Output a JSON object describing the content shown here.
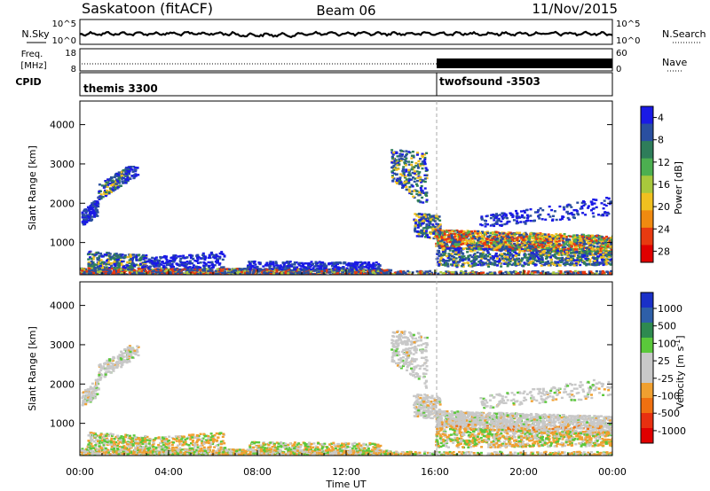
{
  "header": {
    "station": "Saskatoon (fitACF)",
    "beam": "Beam 06",
    "date": "11/Nov/2015"
  },
  "top_panel": {
    "left_label": "N.Sky",
    "right_label": "N.Search",
    "left_ticks": [
      "10^5",
      "10^0"
    ],
    "right_ticks": [
      "10^5",
      "10^0"
    ]
  },
  "freq_panel": {
    "left_label_top": "Freq.",
    "left_label_bottom": "[MHz]",
    "right_label": "Nave",
    "left_ticks": [
      "18",
      "8"
    ],
    "right_ticks": [
      "60",
      "0"
    ],
    "cpid_label": "CPID"
  },
  "cpid": [
    {
      "name": "themis 3300",
      "start_hour": 0
    },
    {
      "name": "twofsound -3503",
      "start_hour": 16
    }
  ],
  "chart_data": [
    {
      "type": "heatmap",
      "title": "",
      "xlabel": "Time UT",
      "ylabel": "Slant Range [km]",
      "x_ticks": [
        "00:00",
        "04:00",
        "08:00",
        "12:00",
        "16:00",
        "20:00",
        "00:00"
      ],
      "xlim_hours": [
        0,
        24
      ],
      "y_ticks": [
        1000,
        2000,
        3000,
        4000
      ],
      "ylim": [
        180,
        4600
      ],
      "colorbar": {
        "label": "Power [dB]",
        "ticks": [
          "4",
          "8",
          "12",
          "16",
          "20",
          "24",
          "28"
        ],
        "colors": [
          "#1a1ae6",
          "#2a4fa0",
          "#2e7d5a",
          "#4caf50",
          "#a8c83c",
          "#f0c020",
          "#f08a10",
          "#e83a10",
          "#e00000"
        ]
      }
    },
    {
      "type": "heatmap",
      "title": "",
      "xlabel": "Time UT",
      "ylabel": "Slant Range [km]",
      "x_ticks": [
        "00:00",
        "04:00",
        "08:00",
        "12:00",
        "16:00",
        "20:00",
        "00:00"
      ],
      "xlim_hours": [
        0,
        24
      ],
      "y_ticks": [
        1000,
        2000,
        3000,
        4000
      ],
      "ylim": [
        180,
        4600
      ],
      "colorbar": {
        "label": "Velocity [m s^-1]",
        "ticks": [
          "1000",
          "500",
          "100",
          "25",
          "-25",
          "-100",
          "-500",
          "-1000"
        ],
        "colors": [
          "#1a30c8",
          "#2e5fa8",
          "#2e8a50",
          "#5ac83a",
          "#c8c8c8",
          "#c8c8c8",
          "#f0a030",
          "#f07010",
          "#e83010",
          "#e00000"
        ]
      }
    }
  ]
}
